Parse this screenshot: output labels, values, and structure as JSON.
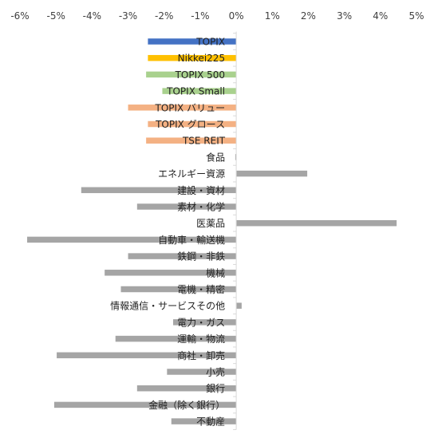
{
  "chart_data": {
    "type": "bar",
    "orientation": "horizontal",
    "title": "",
    "xlabel": "",
    "ylabel": "",
    "xlim": [
      -6,
      5
    ],
    "x_ticks": [
      -6,
      -5,
      -4,
      -3,
      -2,
      -1,
      0,
      1,
      2,
      3,
      4,
      5
    ],
    "x_tick_labels": [
      "-6%",
      "-5%",
      "-4%",
      "-3%",
      "-2%",
      "-1%",
      "0%",
      "1%",
      "2%",
      "3%",
      "4%",
      "5%"
    ],
    "x_axis_position": "top",
    "grid": false,
    "legend": "none",
    "unit": "%",
    "categories": [
      "TOPIX",
      "Nikkei225",
      "TOPIX 500",
      "TOPIX Small",
      "TOPIX バリュー",
      "TOPIX グロース",
      "TSE REIT",
      "食品",
      "エネルギー資源",
      "建設・資材",
      "素材・化学",
      "医薬品",
      "自動車・輸送機",
      "鉄鋼・非鉄",
      "機械",
      "電機・精密",
      "情報通信・サービスその他",
      "電力・ガス",
      "運輸・物流",
      "商社・卸売",
      "小売",
      "銀行",
      "金融（除く銀行）",
      "不動産"
    ],
    "values": [
      -2.45,
      -2.45,
      -2.5,
      -2.05,
      -3.0,
      -2.45,
      -2.5,
      -0.02,
      1.97,
      -4.3,
      -2.75,
      4.45,
      -5.8,
      -3.0,
      -3.65,
      -3.2,
      0.15,
      -1.75,
      -3.35,
      -4.98,
      -1.92,
      -2.75,
      -5.05,
      -1.8
    ],
    "colors": [
      "#4472C4",
      "#FFC000",
      "#A9D18E",
      "#A9D18E",
      "#F4B183",
      "#F4B183",
      "#F4B183",
      "#A5A5A5",
      "#A5A5A5",
      "#A5A5A5",
      "#A5A5A5",
      "#A5A5A5",
      "#A5A5A5",
      "#A5A5A5",
      "#A5A5A5",
      "#A5A5A5",
      "#A5A5A5",
      "#A5A5A5",
      "#A5A5A5",
      "#A5A5A5",
      "#A5A5A5",
      "#A5A5A5",
      "#A5A5A5",
      "#A5A5A5"
    ]
  }
}
